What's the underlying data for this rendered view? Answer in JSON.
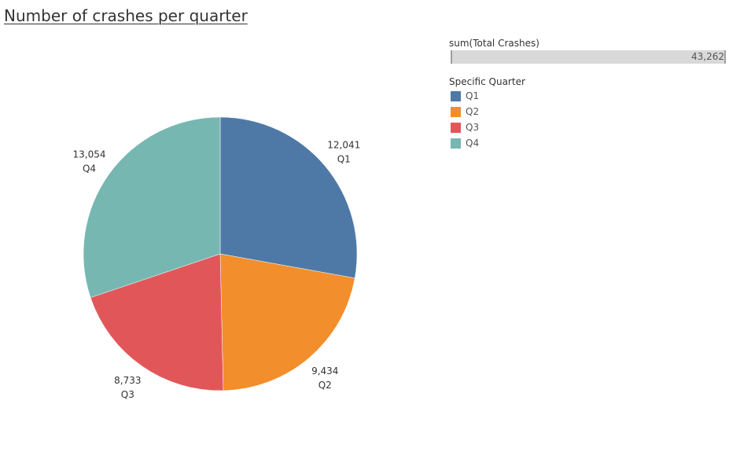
{
  "chart_data": {
    "type": "pie",
    "title": "Number of crashes per quarter",
    "categories": [
      "Q1",
      "Q2",
      "Q3",
      "Q4"
    ],
    "values": [
      12041,
      9434,
      8733,
      13054
    ],
    "value_labels": [
      "12,041",
      "9,434",
      "8,733",
      "13,054"
    ],
    "colors": [
      "#4e79a7",
      "#f28e2b",
      "#e15759",
      "#76b7b2"
    ],
    "total": 43262,
    "total_label": "43,262",
    "start_angle": "12 o'clock",
    "direction": "clockwise",
    "legend": {
      "size_title": "sum(Total Crashes)",
      "color_title": "Specific Quarter",
      "position": "top-right"
    }
  }
}
